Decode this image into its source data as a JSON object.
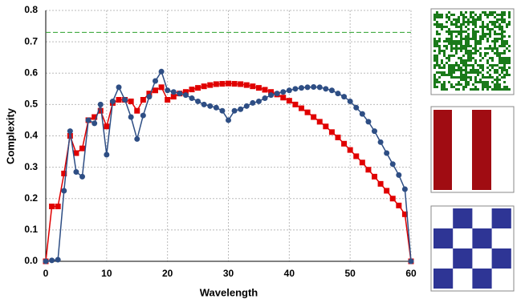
{
  "chart_data": {
    "type": "line",
    "x_label": "Wavelength",
    "y_label": "Complexity",
    "x": [
      0,
      1,
      2,
      3,
      4,
      5,
      6,
      7,
      8,
      9,
      10,
      11,
      12,
      13,
      14,
      15,
      16,
      17,
      18,
      19,
      20,
      21,
      22,
      23,
      24,
      25,
      26,
      27,
      28,
      29,
      30,
      31,
      32,
      33,
      34,
      35,
      36,
      37,
      38,
      39,
      40,
      41,
      42,
      43,
      44,
      45,
      46,
      47,
      48,
      49,
      50,
      51,
      52,
      53,
      54,
      55,
      56,
      57,
      58,
      59,
      60
    ],
    "series": [
      {
        "color": "#e00000",
        "marker": "square",
        "values": [
          0,
          0.175,
          0.175,
          0.28,
          0.4,
          0.345,
          0.36,
          0.45,
          0.46,
          0.48,
          0.43,
          0.505,
          0.515,
          0.515,
          0.51,
          0.48,
          0.515,
          0.535,
          0.545,
          0.555,
          0.515,
          0.525,
          0.535,
          0.54,
          0.548,
          0.553,
          0.558,
          0.562,
          0.565,
          0.566,
          0.567,
          0.566,
          0.565,
          0.562,
          0.558,
          0.553,
          0.547,
          0.54,
          0.532,
          0.522,
          0.512,
          0.5,
          0.488,
          0.475,
          0.46,
          0.445,
          0.43,
          0.412,
          0.395,
          0.375,
          0.355,
          0.335,
          0.315,
          0.292,
          0.27,
          0.247,
          0.225,
          0.2,
          0.178,
          0.15,
          0
        ]
      },
      {
        "color": "#2e4e84",
        "marker": "circle",
        "values": [
          0,
          0.003,
          0.005,
          0.225,
          0.415,
          0.285,
          0.27,
          0.45,
          0.44,
          0.5,
          0.34,
          0.51,
          0.555,
          0.515,
          0.46,
          0.39,
          0.465,
          0.525,
          0.575,
          0.605,
          0.545,
          0.54,
          0.535,
          0.53,
          0.52,
          0.51,
          0.5,
          0.495,
          0.49,
          0.48,
          0.45,
          0.48,
          0.485,
          0.495,
          0.505,
          0.51,
          0.52,
          0.53,
          0.535,
          0.54,
          0.545,
          0.55,
          0.553,
          0.555,
          0.556,
          0.555,
          0.55,
          0.545,
          0.535,
          0.525,
          0.51,
          0.49,
          0.47,
          0.445,
          0.415,
          0.38,
          0.345,
          0.31,
          0.275,
          0.23,
          0
        ]
      }
    ],
    "reference_line": {
      "value": 0.73,
      "color": "#2ca02c"
    },
    "xlim": [
      0,
      60
    ],
    "xticks": [
      0,
      10,
      20,
      30,
      40,
      50,
      60
    ],
    "ylim": [
      0,
      0.8
    ],
    "yticks": [
      {
        "value": 0,
        "label": "0.0"
      },
      0.1,
      0.2,
      0.3,
      0.4,
      0.5,
      0.6,
      0.7,
      0.8
    ],
    "grid": true
  }
}
